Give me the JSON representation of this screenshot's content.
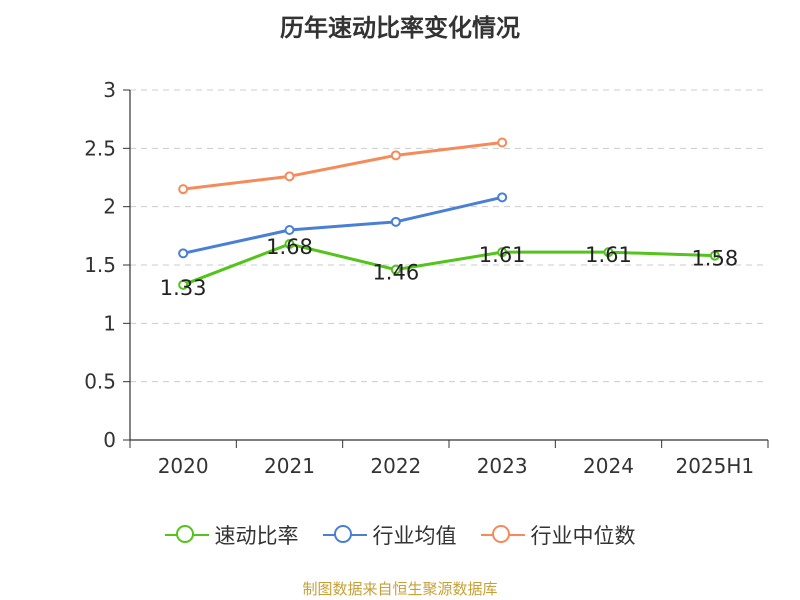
{
  "chart_data": {
    "type": "line",
    "title": "历年速动比率变化情况",
    "categories": [
      "2020",
      "2021",
      "2022",
      "2023",
      "2024",
      "2025H1"
    ],
    "ylim": [
      0,
      3
    ],
    "yticks": [
      "0",
      "0.5",
      "1",
      "1.5",
      "2",
      "2.5",
      "3"
    ],
    "ytick_values": [
      0,
      0.5,
      1,
      1.5,
      2,
      2.5,
      3
    ],
    "grid": true,
    "legend_position": "bottom",
    "series": [
      {
        "name": "速动比率",
        "color": "#52c41a",
        "values": [
          1.33,
          1.68,
          1.46,
          1.61,
          1.61,
          1.58
        ],
        "labels": [
          "1.33",
          "1.68",
          "1.46",
          "1.61",
          "1.61",
          "1.58"
        ]
      },
      {
        "name": "行业均值",
        "color": "#4a7fd6",
        "values": [
          1.6,
          1.8,
          1.87,
          2.08,
          null,
          null
        ]
      },
      {
        "name": "行业中位数",
        "color": "#f58b5a",
        "values": [
          2.15,
          2.26,
          2.44,
          2.55,
          null,
          null
        ]
      }
    ]
  },
  "source": "制图数据来自恒生聚源数据库"
}
